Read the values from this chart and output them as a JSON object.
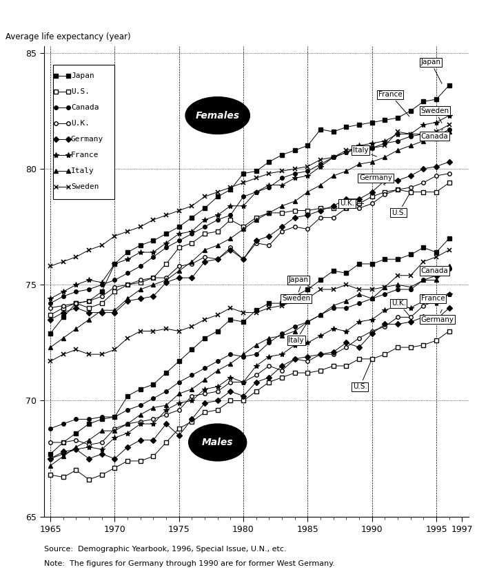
{
  "ylabel": "Average life expectancy (year)",
  "source_text": "Source:  Demographic Yearbook, 1996, Special Issue, U.N., etc.",
  "note_text": "Note:  The figures for Germany through 1990 are for former West Germany.",
  "yticks": [
    65,
    70,
    75,
    80,
    85
  ],
  "xtick_labels": [
    "1965",
    "1970",
    "1975",
    "1980",
    "1985",
    "1990",
    "1995",
    "1997"
  ],
  "females": {
    "Japan": {
      "years": [
        1965,
        1966,
        1967,
        1968,
        1969,
        1970,
        1971,
        1972,
        1973,
        1974,
        1975,
        1976,
        1977,
        1978,
        1979,
        1980,
        1981,
        1982,
        1983,
        1984,
        1985,
        1986,
        1987,
        1988,
        1989,
        1990,
        1991,
        1992,
        1993,
        1994,
        1995,
        1996
      ],
      "values": [
        72.9,
        73.6,
        74.2,
        74.3,
        74.7,
        75.9,
        76.4,
        76.7,
        76.9,
        77.2,
        77.5,
        77.9,
        78.3,
        78.8,
        79.1,
        79.8,
        79.9,
        80.3,
        80.6,
        80.8,
        81.0,
        81.7,
        81.6,
        81.8,
        81.9,
        82.0,
        82.1,
        82.2,
        82.5,
        82.9,
        83.0,
        83.6
      ]
    },
    "U.S.": {
      "years": [
        1965,
        1966,
        1967,
        1968,
        1969,
        1970,
        1971,
        1972,
        1973,
        1974,
        1975,
        1976,
        1977,
        1978,
        1979,
        1980,
        1981,
        1982,
        1983,
        1984,
        1985,
        1986,
        1987,
        1988,
        1989,
        1990,
        1991,
        1992,
        1993,
        1994,
        1995,
        1996
      ],
      "values": [
        73.7,
        74.0,
        74.2,
        74.0,
        74.2,
        74.7,
        75.0,
        75.1,
        75.3,
        75.9,
        76.6,
        76.8,
        77.2,
        77.3,
        77.8,
        77.5,
        77.9,
        78.1,
        78.1,
        78.2,
        78.2,
        78.3,
        78.3,
        78.3,
        78.5,
        78.8,
        79.0,
        79.1,
        79.0,
        79.0,
        79.0,
        79.4
      ]
    },
    "Canada": {
      "years": [
        1965,
        1966,
        1967,
        1968,
        1969,
        1970,
        1971,
        1972,
        1973,
        1974,
        1975,
        1976,
        1977,
        1978,
        1979,
        1980,
        1981,
        1982,
        1983,
        1984,
        1985,
        1986,
        1987,
        1988,
        1989,
        1990,
        1991,
        1992,
        1993,
        1994,
        1995,
        1996
      ],
      "values": [
        74.2,
        74.5,
        74.7,
        74.8,
        75.0,
        75.2,
        75.5,
        75.8,
        76.2,
        76.6,
        76.9,
        77.2,
        77.5,
        77.8,
        78.0,
        78.8,
        79.0,
        79.2,
        79.6,
        79.8,
        79.9,
        80.2,
        80.5,
        80.7,
        80.9,
        80.9,
        81.1,
        81.2,
        81.4,
        81.5,
        81.4,
        81.7
      ]
    },
    "U.K.": {
      "years": [
        1965,
        1966,
        1967,
        1968,
        1969,
        1970,
        1971,
        1972,
        1973,
        1974,
        1975,
        1976,
        1977,
        1978,
        1979,
        1980,
        1981,
        1982,
        1983,
        1984,
        1985,
        1986,
        1987,
        1988,
        1989,
        1990,
        1991,
        1992,
        1993,
        1994,
        1995,
        1996
      ],
      "values": [
        74.0,
        74.1,
        74.2,
        74.3,
        74.5,
        74.9,
        75.0,
        75.2,
        75.3,
        75.3,
        75.8,
        75.9,
        76.2,
        76.1,
        76.6,
        76.1,
        76.8,
        76.7,
        77.3,
        77.5,
        77.4,
        77.9,
        77.9,
        78.3,
        78.3,
        78.5,
        78.9,
        79.1,
        79.2,
        79.4,
        79.7,
        79.8
      ]
    },
    "Germany": {
      "years": [
        1965,
        1966,
        1967,
        1968,
        1969,
        1970,
        1971,
        1972,
        1973,
        1974,
        1975,
        1976,
        1977,
        1978,
        1979,
        1980,
        1981,
        1982,
        1983,
        1984,
        1985,
        1986,
        1987,
        1988,
        1989,
        1990,
        1991,
        1992,
        1993,
        1994,
        1995,
        1996
      ],
      "values": [
        73.5,
        73.8,
        74.0,
        73.8,
        73.8,
        73.8,
        74.3,
        74.4,
        74.5,
        75.1,
        75.3,
        75.3,
        76.0,
        76.1,
        76.5,
        76.1,
        76.9,
        77.1,
        77.5,
        77.9,
        78.0,
        78.2,
        78.4,
        78.7,
        78.7,
        79.0,
        79.5,
        79.5,
        79.7,
        80.0,
        80.1,
        80.3
      ]
    },
    "France": {
      "years": [
        1965,
        1966,
        1967,
        1968,
        1969,
        1970,
        1971,
        1972,
        1973,
        1974,
        1975,
        1976,
        1977,
        1978,
        1979,
        1980,
        1981,
        1982,
        1983,
        1984,
        1985,
        1986,
        1987,
        1988,
        1989,
        1990,
        1991,
        1992,
        1993,
        1994,
        1995,
        1996
      ],
      "values": [
        74.4,
        74.7,
        75.0,
        75.2,
        75.1,
        75.9,
        76.1,
        76.4,
        76.4,
        76.8,
        77.2,
        77.3,
        77.8,
        78.0,
        78.4,
        78.4,
        79.0,
        79.3,
        79.3,
        79.6,
        79.7,
        80.1,
        80.5,
        80.7,
        81.0,
        81.1,
        81.2,
        81.5,
        81.5,
        81.9,
        82.0,
        82.3
      ]
    },
    "Italy": {
      "years": [
        1965,
        1966,
        1967,
        1968,
        1969,
        1970,
        1971,
        1972,
        1973,
        1974,
        1975,
        1976,
        1977,
        1978,
        1979,
        1980,
        1981,
        1982,
        1983,
        1984,
        1985,
        1986,
        1987,
        1988,
        1989,
        1990,
        1991,
        1992,
        1993,
        1994,
        1995,
        1996
      ],
      "values": [
        72.3,
        72.7,
        73.1,
        73.5,
        73.9,
        73.9,
        74.4,
        74.8,
        75.0,
        75.2,
        75.6,
        76.0,
        76.5,
        76.7,
        77.0,
        77.4,
        77.8,
        78.1,
        78.4,
        78.6,
        79.0,
        79.3,
        79.7,
        79.9,
        80.2,
        80.3,
        80.5,
        80.8,
        81.0,
        81.2,
        81.3,
        81.6
      ]
    },
    "Sweden": {
      "years": [
        1965,
        1966,
        1967,
        1968,
        1969,
        1970,
        1971,
        1972,
        1973,
        1974,
        1975,
        1976,
        1977,
        1978,
        1979,
        1980,
        1981,
        1982,
        1983,
        1984,
        1985,
        1986,
        1987,
        1988,
        1989,
        1990,
        1991,
        1992,
        1993,
        1994,
        1995,
        1996
      ],
      "values": [
        75.8,
        76.0,
        76.2,
        76.5,
        76.7,
        77.1,
        77.3,
        77.5,
        77.8,
        78.0,
        78.2,
        78.4,
        78.8,
        79.0,
        79.2,
        79.4,
        79.6,
        79.8,
        79.9,
        80.0,
        80.1,
        80.4,
        80.5,
        80.8,
        80.9,
        80.9,
        81.0,
        81.6,
        81.5,
        81.5,
        81.6,
        81.9
      ]
    }
  },
  "males": {
    "Japan": {
      "years": [
        1965,
        1966,
        1967,
        1968,
        1969,
        1970,
        1971,
        1972,
        1973,
        1974,
        1975,
        1976,
        1977,
        1978,
        1979,
        1980,
        1981,
        1982,
        1983,
        1984,
        1985,
        1986,
        1987,
        1988,
        1989,
        1990,
        1991,
        1992,
        1993,
        1994,
        1995,
        1996
      ],
      "values": [
        67.7,
        68.2,
        68.6,
        69.0,
        69.2,
        69.3,
        70.2,
        70.5,
        70.7,
        71.2,
        71.7,
        72.2,
        72.7,
        73.0,
        73.5,
        73.4,
        73.9,
        74.2,
        74.2,
        74.5,
        74.8,
        75.2,
        75.6,
        75.5,
        75.9,
        75.9,
        76.1,
        76.1,
        76.3,
        76.6,
        76.4,
        77.0
      ]
    },
    "U.S.": {
      "years": [
        1965,
        1966,
        1967,
        1968,
        1969,
        1970,
        1971,
        1972,
        1973,
        1974,
        1975,
        1976,
        1977,
        1978,
        1979,
        1980,
        1981,
        1982,
        1983,
        1984,
        1985,
        1986,
        1987,
        1988,
        1989,
        1990,
        1991,
        1992,
        1993,
        1994,
        1995,
        1996
      ],
      "values": [
        66.8,
        66.7,
        67.0,
        66.6,
        66.8,
        67.1,
        67.4,
        67.4,
        67.6,
        68.2,
        68.8,
        69.1,
        69.5,
        69.6,
        70.0,
        70.0,
        70.4,
        70.8,
        71.0,
        71.2,
        71.2,
        71.3,
        71.5,
        71.5,
        71.8,
        71.8,
        72.0,
        72.3,
        72.3,
        72.4,
        72.6,
        73.0
      ]
    },
    "Canada": {
      "years": [
        1965,
        1966,
        1967,
        1968,
        1969,
        1970,
        1971,
        1972,
        1973,
        1974,
        1975,
        1976,
        1977,
        1978,
        1979,
        1980,
        1981,
        1982,
        1983,
        1984,
        1985,
        1986,
        1987,
        1988,
        1989,
        1990,
        1991,
        1992,
        1993,
        1994,
        1995,
        1996
      ],
      "values": [
        68.8,
        69.0,
        69.2,
        69.2,
        69.3,
        69.3,
        69.6,
        69.8,
        70.1,
        70.4,
        70.8,
        71.1,
        71.4,
        71.7,
        72.0,
        71.9,
        72.0,
        72.5,
        72.9,
        73.2,
        73.4,
        73.7,
        74.0,
        74.0,
        74.2,
        74.4,
        74.6,
        74.8,
        74.8,
        75.2,
        75.4,
        75.7
      ]
    },
    "U.K.": {
      "years": [
        1965,
        1966,
        1967,
        1968,
        1969,
        1970,
        1971,
        1972,
        1973,
        1974,
        1975,
        1976,
        1977,
        1978,
        1979,
        1980,
        1981,
        1982,
        1983,
        1984,
        1985,
        1986,
        1987,
        1988,
        1989,
        1990,
        1991,
        1992,
        1993,
        1994,
        1995,
        1996
      ],
      "values": [
        68.2,
        68.2,
        68.3,
        68.1,
        68.2,
        68.8,
        69.0,
        69.1,
        69.2,
        69.4,
        69.6,
        70.2,
        70.3,
        70.4,
        70.8,
        70.8,
        71.1,
        71.5,
        71.3,
        71.8,
        71.7,
        72.0,
        72.0,
        72.3,
        72.7,
        73.0,
        73.2,
        73.6,
        73.6,
        74.1,
        74.3,
        74.6
      ]
    },
    "Germany": {
      "years": [
        1965,
        1966,
        1967,
        1968,
        1969,
        1970,
        1971,
        1972,
        1973,
        1974,
        1975,
        1976,
        1977,
        1978,
        1979,
        1980,
        1981,
        1982,
        1983,
        1984,
        1985,
        1986,
        1987,
        1988,
        1989,
        1990,
        1991,
        1992,
        1993,
        1994,
        1995,
        1996
      ],
      "values": [
        67.5,
        67.8,
        67.9,
        67.5,
        67.7,
        67.5,
        68.0,
        68.3,
        68.3,
        69.0,
        68.5,
        69.2,
        69.9,
        70.0,
        70.4,
        70.2,
        70.8,
        71.0,
        71.5,
        71.8,
        71.9,
        72.0,
        72.1,
        72.5,
        72.3,
        72.9,
        73.3,
        73.3,
        73.4,
        73.6,
        73.5,
        74.0
      ]
    },
    "France": {
      "years": [
        1965,
        1966,
        1967,
        1968,
        1969,
        1970,
        1971,
        1972,
        1973,
        1974,
        1975,
        1976,
        1977,
        1978,
        1979,
        1980,
        1981,
        1982,
        1983,
        1984,
        1985,
        1986,
        1987,
        1988,
        1989,
        1990,
        1991,
        1992,
        1993,
        1994,
        1995,
        1996
      ],
      "values": [
        67.5,
        67.7,
        67.9,
        68.0,
        67.9,
        68.4,
        68.6,
        69.0,
        69.0,
        69.6,
        69.9,
        70.0,
        70.5,
        70.6,
        71.0,
        70.8,
        71.5,
        71.9,
        72.0,
        72.4,
        72.5,
        72.8,
        73.1,
        73.0,
        73.4,
        73.5,
        73.9,
        74.1,
        74.0,
        74.3,
        74.2,
        74.6
      ]
    },
    "Italy": {
      "years": [
        1965,
        1966,
        1967,
        1968,
        1969,
        1970,
        1971,
        1972,
        1973,
        1974,
        1975,
        1976,
        1977,
        1978,
        1979,
        1980,
        1981,
        1982,
        1983,
        1984,
        1985,
        1986,
        1987,
        1988,
        1989,
        1990,
        1991,
        1992,
        1993,
        1994,
        1995,
        1996
      ],
      "values": [
        67.2,
        67.6,
        68.0,
        68.3,
        68.7,
        68.7,
        69.0,
        69.4,
        69.7,
        69.8,
        70.3,
        70.5,
        70.9,
        71.3,
        71.6,
        72.0,
        72.4,
        72.7,
        72.8,
        73.0,
        73.4,
        73.7,
        74.1,
        74.3,
        74.6,
        74.4,
        74.9,
        75.0,
        74.9,
        75.2,
        75.2,
        75.8
      ]
    },
    "Sweden": {
      "years": [
        1965,
        1966,
        1967,
        1968,
        1969,
        1970,
        1971,
        1972,
        1973,
        1974,
        1975,
        1976,
        1977,
        1978,
        1979,
        1980,
        1981,
        1982,
        1983,
        1984,
        1985,
        1986,
        1987,
        1988,
        1989,
        1990,
        1991,
        1992,
        1993,
        1994,
        1995,
        1996
      ],
      "values": [
        71.7,
        72.0,
        72.2,
        72.0,
        72.0,
        72.2,
        72.7,
        73.0,
        73.0,
        73.1,
        73.0,
        73.2,
        73.5,
        73.7,
        74.0,
        73.8,
        73.8,
        74.0,
        74.1,
        74.3,
        74.4,
        74.8,
        74.8,
        75.0,
        74.8,
        74.8,
        74.9,
        75.4,
        75.4,
        76.0,
        76.2,
        76.5
      ]
    }
  }
}
